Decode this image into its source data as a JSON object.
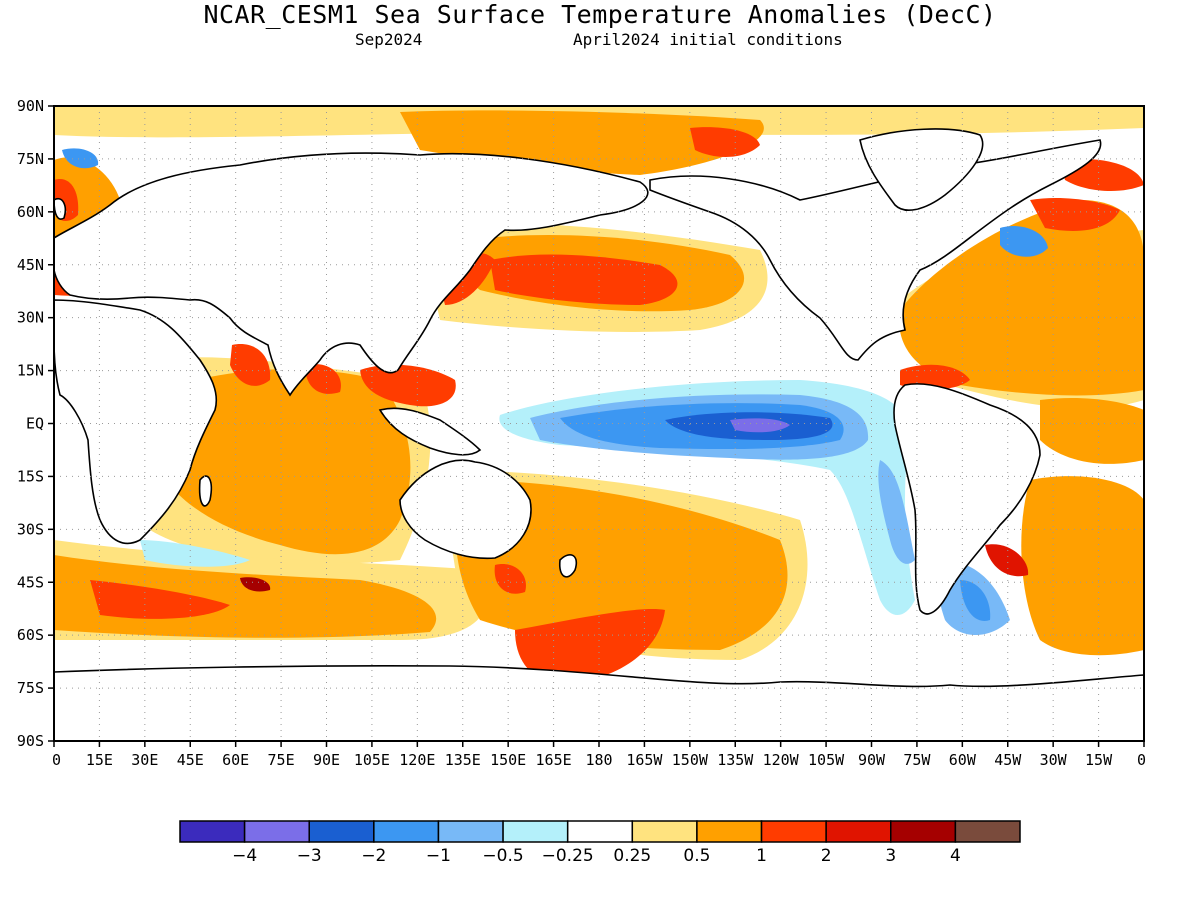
{
  "title": "NCAR_CESM1 Sea Surface Temperature Anomalies (DecC)",
  "valid_month": "Sep2024",
  "initial_conditions": "April2024 initial conditions",
  "map": {
    "projection": "equirectangular",
    "lon_range": [
      0,
      360
    ],
    "lat_range": [
      -90,
      90
    ],
    "grid": "dotted",
    "lat_ticks": [
      "90N",
      "75N",
      "60N",
      "45N",
      "30N",
      "15N",
      "EQ",
      "15S",
      "30S",
      "45S",
      "60S",
      "75S",
      "90S"
    ],
    "lon_ticks": [
      "0",
      "15E",
      "30E",
      "45E",
      "60E",
      "75E",
      "90E",
      "105E",
      "120E",
      "135E",
      "150E",
      "165E",
      "180",
      "165W",
      "150W",
      "135W",
      "120W",
      "105W",
      "90W",
      "75W",
      "60W",
      "45W",
      "30W",
      "15W",
      "0"
    ]
  },
  "colorbar": {
    "colors": [
      "#3b2bbd",
      "#7b6ee8",
      "#1a5fd1",
      "#3c97f2",
      "#78b9f7",
      "#b4f0fa",
      "#ffffff",
      "#ffe37f",
      "#ffa000",
      "#ff3c00",
      "#e01400",
      "#a50000",
      "#7a4b3c"
    ],
    "labels": [
      "-4",
      "-3",
      "-2",
      "-1",
      "-0.5",
      "-0.25",
      "0.25",
      "0.5",
      "1",
      "2",
      "3",
      "4"
    ]
  }
}
